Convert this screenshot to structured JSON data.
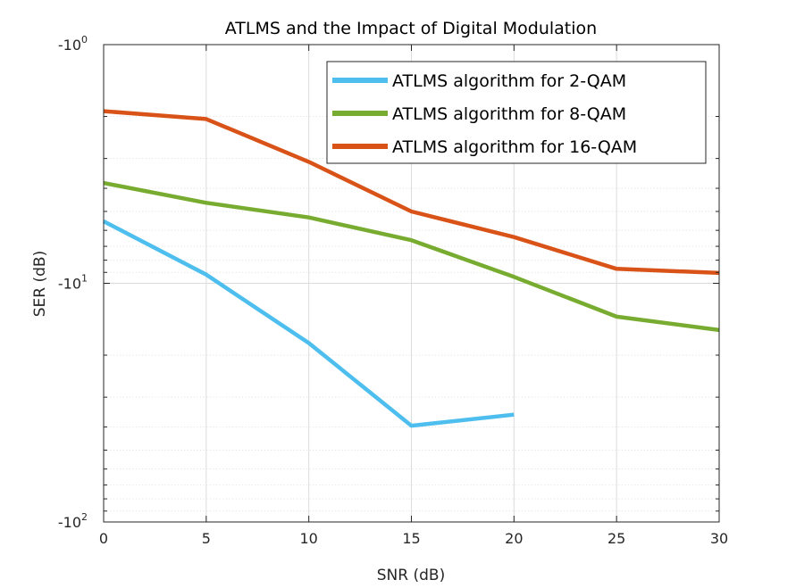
{
  "chart_data": {
    "type": "line",
    "title": "ATLMS and the Impact of Digital Modulation",
    "xlabel": "SNR (dB)",
    "ylabel": "SER (dB)",
    "xlim": [
      0,
      30
    ],
    "x_ticks": [
      "0",
      "5",
      "10",
      "15",
      "20",
      "25",
      "30"
    ],
    "y_scale": "log",
    "y_axis_note": "axis shows magnitude |SER| on a log scale, 1 at top to 100 at bottom",
    "y_ticks": [
      {
        "base": "-10",
        "exp": "0"
      },
      {
        "base": "-10",
        "exp": "1"
      },
      {
        "base": "-10",
        "exp": "2"
      }
    ],
    "grid": true,
    "legend_position": "top-right",
    "series": [
      {
        "name": "ATLMS algorithm for 2-QAM",
        "color": "#4DBEEE",
        "x": [
          0,
          5,
          10,
          15,
          20
        ],
        "y": [
          -5.5,
          -9.2,
          -17.8,
          -39.5,
          -35.5
        ]
      },
      {
        "name": "ATLMS algorithm for 8-QAM",
        "color": "#77AC30",
        "x": [
          0,
          5,
          10,
          15,
          20,
          25,
          30
        ],
        "y": [
          -3.8,
          -4.6,
          -5.3,
          -6.6,
          -9.4,
          -13.8,
          -15.7
        ]
      },
      {
        "name": "ATLMS algorithm for 16-QAM",
        "color": "#D95319",
        "x": [
          0,
          5,
          10,
          15,
          20,
          25,
          30
        ],
        "y": [
          -1.9,
          -2.05,
          -3.1,
          -5.0,
          -6.4,
          -8.7,
          -9.05
        ]
      }
    ]
  }
}
